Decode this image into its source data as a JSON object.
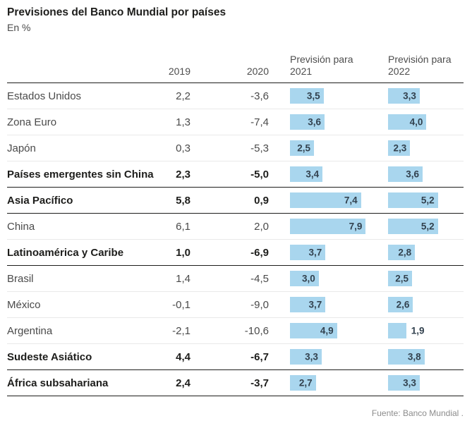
{
  "title": "Previsiones del Banco Mundial por países",
  "subtitle": "En %",
  "source": "Fuente: Banco Mundial .",
  "columns": {
    "y2019": "2019",
    "y2020": "2020",
    "f2021": "Previsión para 2021",
    "f2022": "Previsión para 2022"
  },
  "colors": {
    "bar": "#a9d6ee",
    "bar_label": "#32414e",
    "dark_line": "#1d1d1b",
    "light_line": "#e9e9e9",
    "title_text": "#1d1d1b",
    "body_text": "#4a4a4a",
    "source_text": "#8c8c8c"
  },
  "rows": [
    {
      "label": "Estados Unidos",
      "bold": false,
      "v2019": "2,2",
      "v2020": "-3,6",
      "b2021": 3.5,
      "l2021": "3,5",
      "b2022": 3.3,
      "l2022": "3,3"
    },
    {
      "label": "Zona Euro",
      "bold": false,
      "v2019": "1,3",
      "v2020": "-7,4",
      "b2021": 3.6,
      "l2021": "3,6",
      "b2022": 4.0,
      "l2022": "4,0"
    },
    {
      "label": "Japón",
      "bold": false,
      "v2019": "0,3",
      "v2020": "-5,3",
      "b2021": 2.5,
      "l2021": "2,5",
      "b2022": 2.3,
      "l2022": "2,3"
    },
    {
      "label": "Países emergentes sin China",
      "bold": true,
      "v2019": "2,3",
      "v2020": "-5,0",
      "b2021": 3.4,
      "l2021": "3,4",
      "b2022": 3.6,
      "l2022": "3,6"
    },
    {
      "label": "Asia Pacífico",
      "bold": true,
      "v2019": "5,8",
      "v2020": "0,9",
      "b2021": 7.4,
      "l2021": "7,4",
      "b2022": 5.2,
      "l2022": "5,2"
    },
    {
      "label": "China",
      "bold": false,
      "v2019": "6,1",
      "v2020": "2,0",
      "b2021": 7.9,
      "l2021": "7,9",
      "b2022": 5.2,
      "l2022": "5,2"
    },
    {
      "label": "Latinoamérica y Caribe",
      "bold": true,
      "v2019": "1,0",
      "v2020": "-6,9",
      "b2021": 3.7,
      "l2021": "3,7",
      "b2022": 2.8,
      "l2022": "2,8"
    },
    {
      "label": "Brasil",
      "bold": false,
      "v2019": "1,4",
      "v2020": "-4,5",
      "b2021": 3.0,
      "l2021": "3,0",
      "b2022": 2.5,
      "l2022": "2,5"
    },
    {
      "label": "México",
      "bold": false,
      "v2019": "-0,1",
      "v2020": "-9,0",
      "b2021": 3.7,
      "l2021": "3,7",
      "b2022": 2.6,
      "l2022": "2,6"
    },
    {
      "label": "Argentina",
      "bold": false,
      "v2019": "-2,1",
      "v2020": "-10,6",
      "b2021": 4.9,
      "l2021": "4,9",
      "b2022": 1.9,
      "l2022": "1,9"
    },
    {
      "label": "Sudeste Asiático",
      "bold": true,
      "v2019": "4,4",
      "v2020": "-6,7",
      "b2021": 3.3,
      "l2021": "3,3",
      "b2022": 3.8,
      "l2022": "3,8"
    },
    {
      "label": "África subsahariana",
      "bold": true,
      "v2019": "2,4",
      "v2020": "-3,7",
      "b2021": 2.7,
      "l2021": "2,7",
      "b2022": 3.3,
      "l2022": "3,3"
    }
  ],
  "chart_data": {
    "type": "table",
    "title": "Previsiones del Banco Mundial por países",
    "subtitle": "En %",
    "categories": [
      "Estados Unidos",
      "Zona Euro",
      "Japón",
      "Países emergentes sin China",
      "Asia Pacífico",
      "China",
      "Latinoamérica y Caribe",
      "Brasil",
      "México",
      "Argentina",
      "Sudeste Asiático",
      "África subsahariana"
    ],
    "bold_categories": [
      "Países emergentes sin China",
      "Asia Pacífico",
      "Latinoamérica y Caribe",
      "Sudeste Asiático",
      "África subsahariana"
    ],
    "series": [
      {
        "name": "2019",
        "display": "text",
        "values": [
          2.2,
          1.3,
          0.3,
          2.3,
          5.8,
          6.1,
          1.0,
          1.4,
          -0.1,
          -2.1,
          4.4,
          2.4
        ]
      },
      {
        "name": "2020",
        "display": "text",
        "values": [
          -3.6,
          -7.4,
          -5.3,
          -5.0,
          0.9,
          2.0,
          -6.9,
          -4.5,
          -9.0,
          -10.6,
          -6.7,
          -3.7
        ]
      },
      {
        "name": "Previsión para 2021",
        "display": "bar",
        "values": [
          3.5,
          3.6,
          2.5,
          3.4,
          7.4,
          7.9,
          3.7,
          3.0,
          3.7,
          4.9,
          3.3,
          2.7
        ]
      },
      {
        "name": "Previsión para 2022",
        "display": "bar",
        "values": [
          3.3,
          4.0,
          2.3,
          3.6,
          5.2,
          5.2,
          2.8,
          2.5,
          2.6,
          1.9,
          3.8,
          3.3
        ]
      }
    ],
    "bar_color": "#a9d6ee",
    "decimal_separator": ",",
    "source": "Fuente: Banco Mundial ."
  }
}
